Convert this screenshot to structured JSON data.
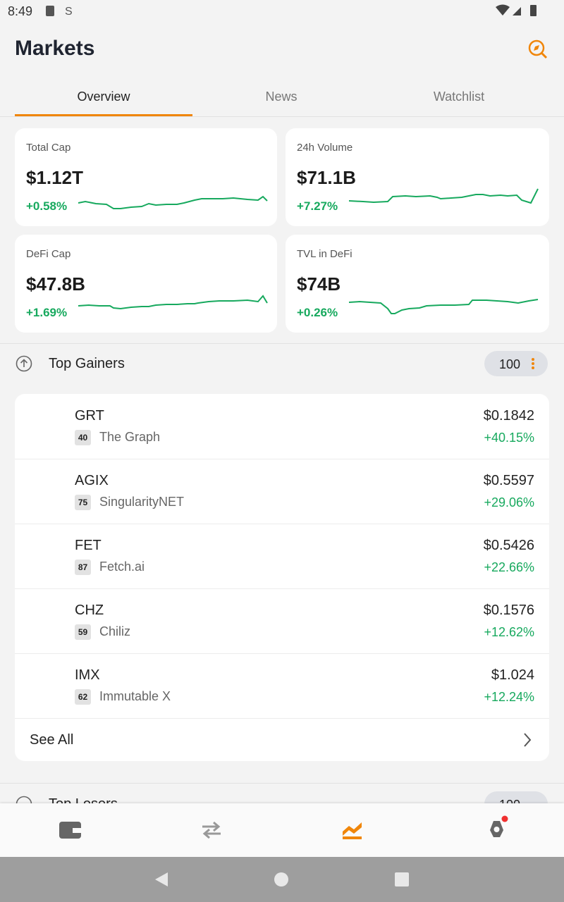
{
  "status_bar": {
    "time": "8:49"
  },
  "header": {
    "title": "Markets"
  },
  "tabs": [
    "Overview",
    "News",
    "Watchlist"
  ],
  "cards": [
    {
      "label": "Total Cap",
      "value": "$1.12T",
      "change": "+0.58%"
    },
    {
      "label": "24h Volume",
      "value": "$71.1B",
      "change": "+7.27%"
    },
    {
      "label": "DeFi Cap",
      "value": "$47.8B",
      "change": "+1.69%"
    },
    {
      "label": "TVL in DeFi",
      "value": "$74B",
      "change": "+0.26%"
    }
  ],
  "top_gainers": {
    "title": "Top Gainers",
    "count": 100,
    "rows": [
      {
        "symbol": "GRT",
        "rank": 40,
        "name": "The Graph",
        "price": "$0.1842",
        "change": "+40.15%"
      },
      {
        "symbol": "AGIX",
        "rank": 75,
        "name": "SingularityNET",
        "price": "$0.5597",
        "change": "+29.06%"
      },
      {
        "symbol": "FET",
        "rank": 87,
        "name": "Fetch.ai",
        "price": "$0.5426",
        "change": "+22.66%"
      },
      {
        "symbol": "CHZ",
        "rank": 59,
        "name": "Chiliz",
        "price": "$0.1576",
        "change": "+12.62%"
      },
      {
        "symbol": "IMX",
        "rank": 62,
        "name": "Immutable X",
        "price": "$1.024",
        "change": "+12.24%"
      }
    ],
    "see_all": "See All"
  },
  "top_losers": {
    "title": "Top Losers",
    "count": 100
  }
}
